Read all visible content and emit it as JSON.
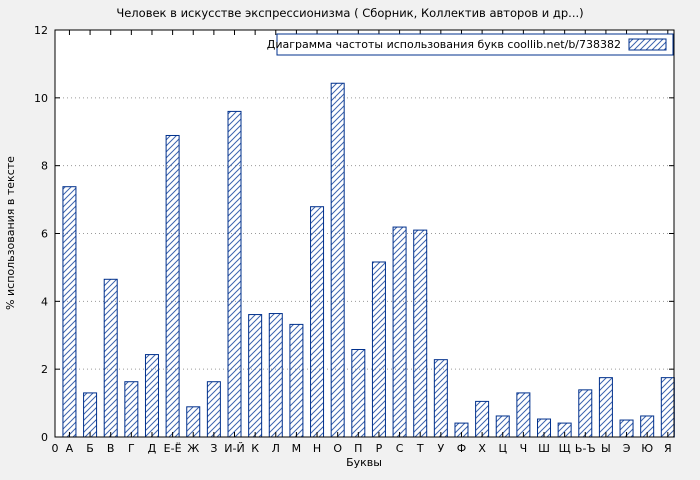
{
  "chart_data": {
    "type": "bar",
    "title": "Человек в искусстве экспрессионизма ( Сборник,  Коллектив авторов и др...)",
    "legend": "Диаграмма частоты использования букв coollib.net/b/738382",
    "xlabel": "Буквы",
    "ylabel": "% использования в тексте",
    "origin_tick_label": "0",
    "ylim": [
      0,
      12
    ],
    "yticks": [
      0,
      2,
      4,
      6,
      8,
      10,
      12
    ],
    "grid": true,
    "legend_position": "top-right",
    "categories": [
      "А",
      "Б",
      "В",
      "Г",
      "Д",
      "Е-Ё",
      "Ж",
      "З",
      "И-Й",
      "К",
      "Л",
      "М",
      "Н",
      "О",
      "П",
      "Р",
      "С",
      "Т",
      "У",
      "Ф",
      "Х",
      "Ц",
      "Ч",
      "Ш",
      "Щ",
      "Ь-Ъ",
      "Ы",
      "Э",
      "Ю",
      "Я"
    ],
    "values": [
      7.38,
      1.3,
      4.65,
      1.63,
      2.43,
      8.89,
      0.89,
      1.63,
      9.6,
      3.61,
      3.64,
      3.32,
      6.79,
      10.43,
      2.58,
      5.16,
      6.19,
      6.1,
      2.28,
      0.41,
      1.05,
      0.62,
      1.3,
      0.53,
      0.41,
      1.39,
      1.75,
      0.5,
      0.62,
      1.75
    ],
    "colors": {
      "page_bg": "#f1f1f1",
      "plot_bg": "#ffffff",
      "bar_border": "#00308c",
      "bar_hatch": "#3c64ae",
      "grid": "#9a9a9a",
      "axis": "#000000"
    }
  }
}
